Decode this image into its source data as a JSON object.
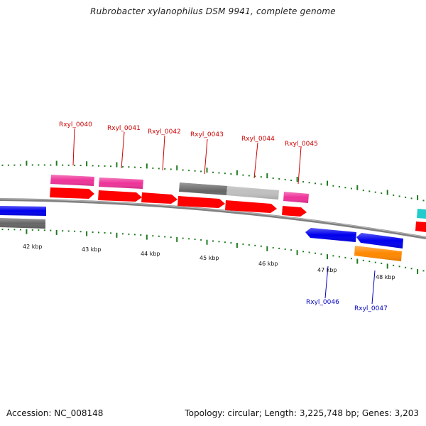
{
  "title": "Rubrobacter xylanophilus DSM 9941, complete genome",
  "footer": {
    "accession": "Accession: NC_008148",
    "summary": "Topology: circular; Length: 3,225,748 bp; Genes: 3,203"
  },
  "colors": {
    "backbone": "#808080",
    "tick": "#1f7a1f",
    "label_upper": "#cc0000",
    "label_lower": "#0000bb",
    "gene_red": "#ff0000",
    "gene_pink": "#ee3399",
    "gene_dark_gray": "#666666",
    "gene_light_gray": "#c0c0c0",
    "gene_blue": "#0000ee",
    "gene_orange": "#ff8800",
    "gene_cyan": "#22cccc"
  },
  "kbp_labels": [
    "42 kbp",
    "43 kbp",
    "44 kbp",
    "45 kbp",
    "46 kbp",
    "47 kbp",
    "48 kbp"
  ],
  "gene_labels": [
    {
      "text": "Rxyl_0040",
      "strand": "upper"
    },
    {
      "text": "Rxyl_0041",
      "strand": "upper"
    },
    {
      "text": "Rxyl_0042",
      "strand": "upper"
    },
    {
      "text": "Rxyl_0043",
      "strand": "upper"
    },
    {
      "text": "Rxyl_0044",
      "strand": "upper"
    },
    {
      "text": "Rxyl_0045",
      "strand": "upper"
    },
    {
      "text": "Rxyl_0046",
      "strand": "lower"
    },
    {
      "text": "Rxyl_0047",
      "strand": "lower"
    }
  ]
}
